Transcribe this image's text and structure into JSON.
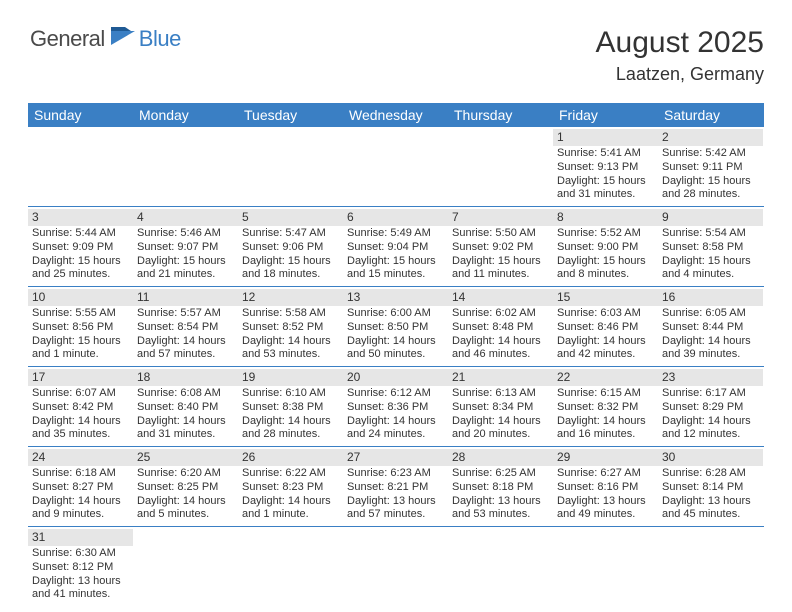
{
  "brand": {
    "part1": "General",
    "part2": "Blue"
  },
  "title": "August 2025",
  "location": "Laatzen, Germany",
  "day_headers": [
    "Sunday",
    "Monday",
    "Tuesday",
    "Wednesday",
    "Thursday",
    "Friday",
    "Saturday"
  ],
  "colors": {
    "header_bg": "#3a7fc4",
    "header_text": "#ffffff",
    "day_num_bg": "#e6e6e6",
    "row_border": "#3a7fc4",
    "text": "#333333"
  },
  "weeks": [
    [
      {
        "day": "",
        "sunrise": "",
        "sunset": "",
        "daylight": ""
      },
      {
        "day": "",
        "sunrise": "",
        "sunset": "",
        "daylight": ""
      },
      {
        "day": "",
        "sunrise": "",
        "sunset": "",
        "daylight": ""
      },
      {
        "day": "",
        "sunrise": "",
        "sunset": "",
        "daylight": ""
      },
      {
        "day": "",
        "sunrise": "",
        "sunset": "",
        "daylight": ""
      },
      {
        "day": "1",
        "sunrise": "Sunrise: 5:41 AM",
        "sunset": "Sunset: 9:13 PM",
        "daylight": "Daylight: 15 hours and 31 minutes."
      },
      {
        "day": "2",
        "sunrise": "Sunrise: 5:42 AM",
        "sunset": "Sunset: 9:11 PM",
        "daylight": "Daylight: 15 hours and 28 minutes."
      }
    ],
    [
      {
        "day": "3",
        "sunrise": "Sunrise: 5:44 AM",
        "sunset": "Sunset: 9:09 PM",
        "daylight": "Daylight: 15 hours and 25 minutes."
      },
      {
        "day": "4",
        "sunrise": "Sunrise: 5:46 AM",
        "sunset": "Sunset: 9:07 PM",
        "daylight": "Daylight: 15 hours and 21 minutes."
      },
      {
        "day": "5",
        "sunrise": "Sunrise: 5:47 AM",
        "sunset": "Sunset: 9:06 PM",
        "daylight": "Daylight: 15 hours and 18 minutes."
      },
      {
        "day": "6",
        "sunrise": "Sunrise: 5:49 AM",
        "sunset": "Sunset: 9:04 PM",
        "daylight": "Daylight: 15 hours and 15 minutes."
      },
      {
        "day": "7",
        "sunrise": "Sunrise: 5:50 AM",
        "sunset": "Sunset: 9:02 PM",
        "daylight": "Daylight: 15 hours and 11 minutes."
      },
      {
        "day": "8",
        "sunrise": "Sunrise: 5:52 AM",
        "sunset": "Sunset: 9:00 PM",
        "daylight": "Daylight: 15 hours and 8 minutes."
      },
      {
        "day": "9",
        "sunrise": "Sunrise: 5:54 AM",
        "sunset": "Sunset: 8:58 PM",
        "daylight": "Daylight: 15 hours and 4 minutes."
      }
    ],
    [
      {
        "day": "10",
        "sunrise": "Sunrise: 5:55 AM",
        "sunset": "Sunset: 8:56 PM",
        "daylight": "Daylight: 15 hours and 1 minute."
      },
      {
        "day": "11",
        "sunrise": "Sunrise: 5:57 AM",
        "sunset": "Sunset: 8:54 PM",
        "daylight": "Daylight: 14 hours and 57 minutes."
      },
      {
        "day": "12",
        "sunrise": "Sunrise: 5:58 AM",
        "sunset": "Sunset: 8:52 PM",
        "daylight": "Daylight: 14 hours and 53 minutes."
      },
      {
        "day": "13",
        "sunrise": "Sunrise: 6:00 AM",
        "sunset": "Sunset: 8:50 PM",
        "daylight": "Daylight: 14 hours and 50 minutes."
      },
      {
        "day": "14",
        "sunrise": "Sunrise: 6:02 AM",
        "sunset": "Sunset: 8:48 PM",
        "daylight": "Daylight: 14 hours and 46 minutes."
      },
      {
        "day": "15",
        "sunrise": "Sunrise: 6:03 AM",
        "sunset": "Sunset: 8:46 PM",
        "daylight": "Daylight: 14 hours and 42 minutes."
      },
      {
        "day": "16",
        "sunrise": "Sunrise: 6:05 AM",
        "sunset": "Sunset: 8:44 PM",
        "daylight": "Daylight: 14 hours and 39 minutes."
      }
    ],
    [
      {
        "day": "17",
        "sunrise": "Sunrise: 6:07 AM",
        "sunset": "Sunset: 8:42 PM",
        "daylight": "Daylight: 14 hours and 35 minutes."
      },
      {
        "day": "18",
        "sunrise": "Sunrise: 6:08 AM",
        "sunset": "Sunset: 8:40 PM",
        "daylight": "Daylight: 14 hours and 31 minutes."
      },
      {
        "day": "19",
        "sunrise": "Sunrise: 6:10 AM",
        "sunset": "Sunset: 8:38 PM",
        "daylight": "Daylight: 14 hours and 28 minutes."
      },
      {
        "day": "20",
        "sunrise": "Sunrise: 6:12 AM",
        "sunset": "Sunset: 8:36 PM",
        "daylight": "Daylight: 14 hours and 24 minutes."
      },
      {
        "day": "21",
        "sunrise": "Sunrise: 6:13 AM",
        "sunset": "Sunset: 8:34 PM",
        "daylight": "Daylight: 14 hours and 20 minutes."
      },
      {
        "day": "22",
        "sunrise": "Sunrise: 6:15 AM",
        "sunset": "Sunset: 8:32 PM",
        "daylight": "Daylight: 14 hours and 16 minutes."
      },
      {
        "day": "23",
        "sunrise": "Sunrise: 6:17 AM",
        "sunset": "Sunset: 8:29 PM",
        "daylight": "Daylight: 14 hours and 12 minutes."
      }
    ],
    [
      {
        "day": "24",
        "sunrise": "Sunrise: 6:18 AM",
        "sunset": "Sunset: 8:27 PM",
        "daylight": "Daylight: 14 hours and 9 minutes."
      },
      {
        "day": "25",
        "sunrise": "Sunrise: 6:20 AM",
        "sunset": "Sunset: 8:25 PM",
        "daylight": "Daylight: 14 hours and 5 minutes."
      },
      {
        "day": "26",
        "sunrise": "Sunrise: 6:22 AM",
        "sunset": "Sunset: 8:23 PM",
        "daylight": "Daylight: 14 hours and 1 minute."
      },
      {
        "day": "27",
        "sunrise": "Sunrise: 6:23 AM",
        "sunset": "Sunset: 8:21 PM",
        "daylight": "Daylight: 13 hours and 57 minutes."
      },
      {
        "day": "28",
        "sunrise": "Sunrise: 6:25 AM",
        "sunset": "Sunset: 8:18 PM",
        "daylight": "Daylight: 13 hours and 53 minutes."
      },
      {
        "day": "29",
        "sunrise": "Sunrise: 6:27 AM",
        "sunset": "Sunset: 8:16 PM",
        "daylight": "Daylight: 13 hours and 49 minutes."
      },
      {
        "day": "30",
        "sunrise": "Sunrise: 6:28 AM",
        "sunset": "Sunset: 8:14 PM",
        "daylight": "Daylight: 13 hours and 45 minutes."
      }
    ],
    [
      {
        "day": "31",
        "sunrise": "Sunrise: 6:30 AM",
        "sunset": "Sunset: 8:12 PM",
        "daylight": "Daylight: 13 hours and 41 minutes."
      },
      {
        "day": "",
        "sunrise": "",
        "sunset": "",
        "daylight": ""
      },
      {
        "day": "",
        "sunrise": "",
        "sunset": "",
        "daylight": ""
      },
      {
        "day": "",
        "sunrise": "",
        "sunset": "",
        "daylight": ""
      },
      {
        "day": "",
        "sunrise": "",
        "sunset": "",
        "daylight": ""
      },
      {
        "day": "",
        "sunrise": "",
        "sunset": "",
        "daylight": ""
      },
      {
        "day": "",
        "sunrise": "",
        "sunset": "",
        "daylight": ""
      }
    ]
  ]
}
